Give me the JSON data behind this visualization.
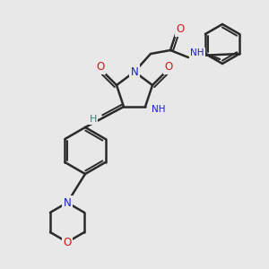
{
  "bg_color": "#e8e8e8",
  "bond_color": "#2a2a2a",
  "bond_width": 1.8,
  "atom_colors": {
    "N": "#1a1acc",
    "O": "#cc1a1a",
    "H": "#3a8080",
    "C": "#2a2a2a"
  },
  "fs": 8.5
}
